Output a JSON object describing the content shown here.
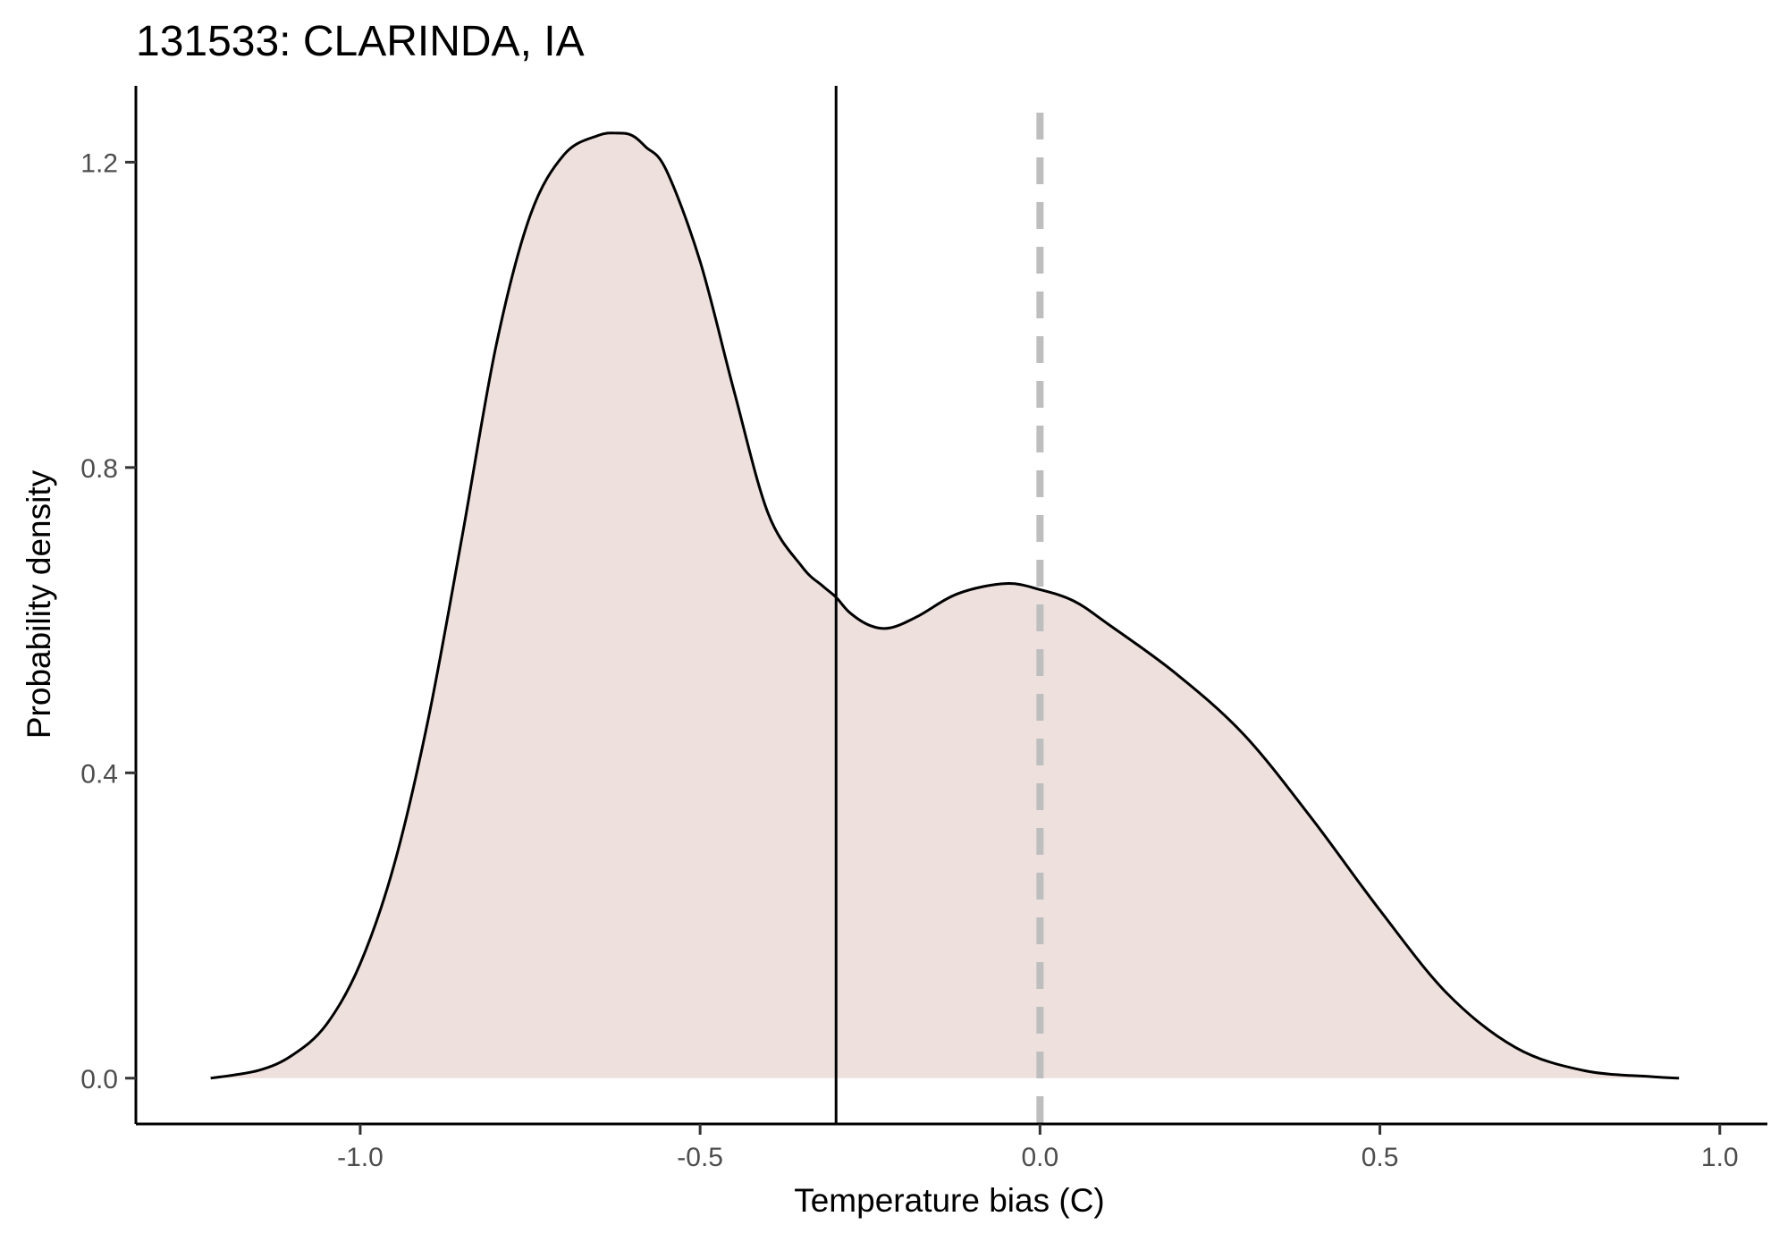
{
  "chart_data": {
    "type": "area",
    "title": "131533: CLARINDA, IA",
    "xlabel": "Temperature bias (C)",
    "ylabel": "Probability density",
    "xlim": [
      -1.33,
      1.07
    ],
    "ylim": [
      -0.06,
      1.3
    ],
    "x_ticks": [
      -1.0,
      -0.5,
      0.0,
      0.5,
      1.0
    ],
    "x_tick_labels": [
      "-1.0",
      "-0.5",
      "0.0",
      "0.5",
      "1.0"
    ],
    "y_ticks": [
      0.0,
      0.4,
      0.8,
      1.2
    ],
    "y_tick_labels": [
      "0.0",
      "0.4",
      "0.8",
      "1.2"
    ],
    "grid": false,
    "fill_color": "#ede0dd",
    "line_color": "#000000",
    "series": [
      {
        "x": [
          -1.22,
          -1.15,
          -1.1,
          -1.05,
          -1.0,
          -0.95,
          -0.9,
          -0.85,
          -0.8,
          -0.75,
          -0.7,
          -0.65,
          -0.62,
          -0.6,
          -0.58,
          -0.55,
          -0.5,
          -0.45,
          -0.4,
          -0.35,
          -0.32,
          -0.3,
          -0.28,
          -0.25,
          -0.22,
          -0.18,
          -0.12,
          -0.05,
          0.0,
          0.05,
          0.1,
          0.2,
          0.3,
          0.4,
          0.5,
          0.6,
          0.7,
          0.8,
          0.9,
          0.94
        ],
        "y": [
          0.0,
          0.01,
          0.03,
          0.07,
          0.15,
          0.28,
          0.47,
          0.71,
          0.96,
          1.13,
          1.21,
          1.235,
          1.238,
          1.235,
          1.22,
          1.19,
          1.07,
          0.9,
          0.74,
          0.67,
          0.645,
          0.63,
          0.61,
          0.593,
          0.59,
          0.605,
          0.635,
          0.648,
          0.64,
          0.625,
          0.595,
          0.53,
          0.45,
          0.34,
          0.22,
          0.11,
          0.04,
          0.01,
          0.002,
          0.0
        ]
      }
    ],
    "annotations": [
      {
        "type": "vline",
        "x": -0.3,
        "style": "solid",
        "color": "#000000"
      },
      {
        "type": "vline",
        "x": 0.0,
        "style": "dashed",
        "color": "#bebebe"
      }
    ]
  }
}
